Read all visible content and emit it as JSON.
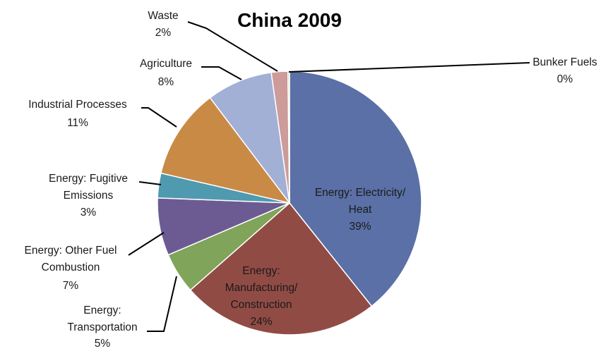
{
  "chart_data": {
    "type": "pie",
    "title": "China 2009",
    "slices": [
      {
        "name": "Energy: Electricity/ Heat",
        "value": 39,
        "percent_label": "39%",
        "color": "#5A70A6"
      },
      {
        "name": "Energy: Manufacturing/ Construction",
        "value": 24,
        "percent_label": "24%",
        "color": "#914B45"
      },
      {
        "name": "Energy: Transportation",
        "value": 5,
        "percent_label": "5%",
        "color": "#7FA45A"
      },
      {
        "name": "Energy: Other Fuel Combustion",
        "value": 7,
        "percent_label": "7%",
        "color": "#6C5B93"
      },
      {
        "name": "Energy: Fugitive Emissions",
        "value": 3,
        "percent_label": "3%",
        "color": "#4F9AAE"
      },
      {
        "name": "Industrial Processes",
        "value": 11,
        "percent_label": "11%",
        "color": "#C98A46"
      },
      {
        "name": "Agriculture",
        "value": 8,
        "percent_label": "8%",
        "color": "#A2B0D6"
      },
      {
        "name": "Waste",
        "value": 2,
        "percent_label": "2%",
        "color": "#CC9B9A"
      },
      {
        "name": "Bunker Fuels",
        "value": 0,
        "percent_label": "0%",
        "color": "#B9D08E"
      }
    ]
  }
}
